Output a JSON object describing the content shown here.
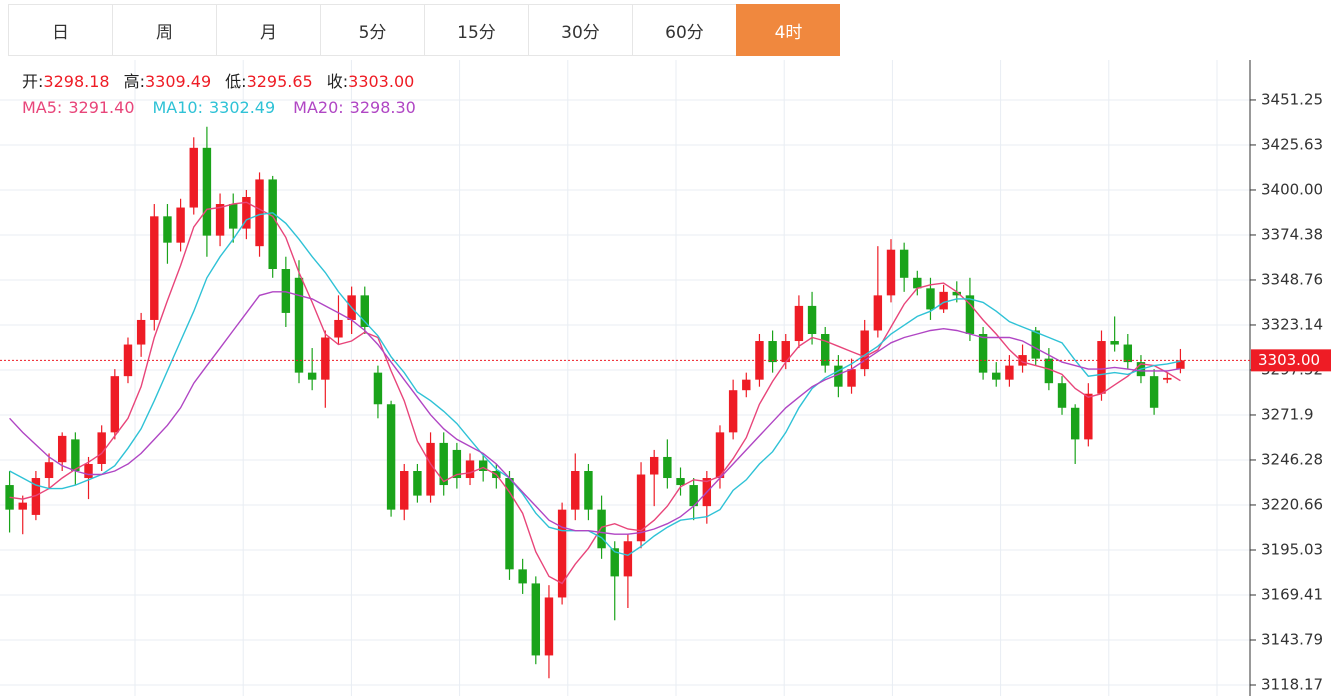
{
  "chart_data": {
    "type": "candlestick",
    "tabs": [
      "日",
      "周",
      "月",
      "5分",
      "15分",
      "30分",
      "60分",
      "4时"
    ],
    "active_tab": 7,
    "info": [
      {
        "label": "开:",
        "value": "3298.18"
      },
      {
        "label": "高:",
        "value": "3309.49"
      },
      {
        "label": "低:",
        "value": "3295.65"
      },
      {
        "label": "收:",
        "value": "3303.00"
      }
    ],
    "up_color": "#ee1c25",
    "down_color": "#1aa31a",
    "ohlc": [
      [
        3232,
        3240,
        3205,
        3218
      ],
      [
        3218,
        3226,
        3204,
        3222
      ],
      [
        3215,
        3240,
        3212,
        3236
      ],
      [
        3236,
        3250,
        3230,
        3245
      ],
      [
        3245,
        3262,
        3240,
        3260
      ],
      [
        3258,
        3262,
        3232,
        3240
      ],
      [
        3236,
        3248,
        3224,
        3244
      ],
      [
        3244,
        3266,
        3240,
        3262
      ],
      [
        3262,
        3298,
        3258,
        3294
      ],
      [
        3294,
        3316,
        3290,
        3312
      ],
      [
        3312,
        3330,
        3305,
        3326
      ],
      [
        3326,
        3392,
        3320,
        3385
      ],
      [
        3385,
        3392,
        3358,
        3370
      ],
      [
        3370,
        3395,
        3365,
        3390
      ],
      [
        3390,
        3430,
        3386,
        3424
      ],
      [
        3424,
        3436,
        3362,
        3374
      ],
      [
        3374,
        3398,
        3368,
        3392
      ],
      [
        3392,
        3398,
        3370,
        3378
      ],
      [
        3378,
        3400,
        3372,
        3396
      ],
      [
        3368,
        3410,
        3362,
        3406
      ],
      [
        3406,
        3408,
        3350,
        3355
      ],
      [
        3355,
        3362,
        3322,
        3330
      ],
      [
        3350,
        3360,
        3290,
        3296
      ],
      [
        3296,
        3310,
        3286,
        3292
      ],
      [
        3292,
        3320,
        3276,
        3316
      ],
      [
        3316,
        3340,
        3312,
        3326
      ],
      [
        3326,
        3345,
        3318,
        3340
      ],
      [
        3340,
        3345,
        3318,
        3322
      ],
      [
        3296,
        3300,
        3270,
        3278
      ],
      [
        3278,
        3280,
        3214,
        3218
      ],
      [
        3218,
        3244,
        3212,
        3240
      ],
      [
        3240,
        3244,
        3222,
        3226
      ],
      [
        3226,
        3262,
        3222,
        3256
      ],
      [
        3256,
        3262,
        3226,
        3232
      ],
      [
        3252,
        3256,
        3230,
        3236
      ],
      [
        3236,
        3250,
        3232,
        3246
      ],
      [
        3246,
        3250,
        3234,
        3240
      ],
      [
        3240,
        3244,
        3230,
        3236
      ],
      [
        3236,
        3240,
        3178,
        3184
      ],
      [
        3184,
        3190,
        3170,
        3176
      ],
      [
        3176,
        3180,
        3130,
        3135
      ],
      [
        3135,
        3175,
        3122,
        3168
      ],
      [
        3168,
        3222,
        3164,
        3218
      ],
      [
        3218,
        3250,
        3212,
        3240
      ],
      [
        3240,
        3244,
        3212,
        3218
      ],
      [
        3218,
        3226,
        3190,
        3196
      ],
      [
        3196,
        3200,
        3155,
        3180
      ],
      [
        3180,
        3204,
        3162,
        3200
      ],
      [
        3200,
        3245,
        3196,
        3238
      ],
      [
        3238,
        3252,
        3220,
        3248
      ],
      [
        3248,
        3258,
        3230,
        3236
      ],
      [
        3236,
        3242,
        3226,
        3232
      ],
      [
        3232,
        3236,
        3212,
        3220
      ],
      [
        3220,
        3240,
        3210,
        3236
      ],
      [
        3236,
        3266,
        3230,
        3262
      ],
      [
        3262,
        3292,
        3258,
        3286
      ],
      [
        3286,
        3296,
        3282,
        3292
      ],
      [
        3292,
        3318,
        3288,
        3314
      ],
      [
        3314,
        3320,
        3296,
        3302
      ],
      [
        3302,
        3318,
        3298,
        3314
      ],
      [
        3314,
        3340,
        3310,
        3334
      ],
      [
        3334,
        3342,
        3312,
        3318
      ],
      [
        3318,
        3322,
        3296,
        3300
      ],
      [
        3300,
        3306,
        3282,
        3288
      ],
      [
        3288,
        3304,
        3284,
        3298
      ],
      [
        3298,
        3326,
        3294,
        3320
      ],
      [
        3320,
        3368,
        3316,
        3340
      ],
      [
        3340,
        3372,
        3336,
        3366
      ],
      [
        3366,
        3370,
        3342,
        3350
      ],
      [
        3350,
        3354,
        3340,
        3344
      ],
      [
        3344,
        3350,
        3326,
        3332
      ],
      [
        3332,
        3346,
        3330,
        3342
      ],
      [
        3342,
        3348,
        3336,
        3340
      ],
      [
        3340,
        3350,
        3314,
        3318
      ],
      [
        3318,
        3322,
        3292,
        3296
      ],
      [
        3296,
        3302,
        3288,
        3292
      ],
      [
        3292,
        3306,
        3288,
        3300
      ],
      [
        3300,
        3312,
        3296,
        3306
      ],
      [
        3320,
        3322,
        3300,
        3304
      ],
      [
        3304,
        3310,
        3286,
        3290
      ],
      [
        3290,
        3294,
        3272,
        3276
      ],
      [
        3276,
        3278,
        3244,
        3258
      ],
      [
        3258,
        3290,
        3254,
        3284
      ],
      [
        3284,
        3320,
        3280,
        3314
      ],
      [
        3314,
        3328,
        3308,
        3312
      ],
      [
        3312,
        3318,
        3298,
        3302
      ],
      [
        3302,
        3306,
        3290,
        3294
      ],
      [
        3294,
        3298,
        3272,
        3276
      ],
      [
        3292,
        3296,
        3290,
        3293
      ],
      [
        3298.18,
        3309.49,
        3295.65,
        3303.0
      ]
    ],
    "series": [
      {
        "name": "MA5:",
        "color": "#e8457a",
        "last_label": "3291.40",
        "values": [
          3225,
          3224,
          3226,
          3230,
          3236,
          3241,
          3245,
          3250,
          3260,
          3270,
          3288,
          3316,
          3337,
          3357,
          3379,
          3389,
          3390,
          3392,
          3393,
          3389,
          3385,
          3373,
          3353,
          3336,
          3318,
          3312,
          3314,
          3319,
          3316,
          3297,
          3280,
          3257,
          3244,
          3234,
          3238,
          3239,
          3242,
          3238,
          3228,
          3216,
          3194,
          3180,
          3176,
          3187,
          3196,
          3208,
          3210,
          3207,
          3206,
          3212,
          3220,
          3231,
          3235,
          3234,
          3237,
          3247,
          3259,
          3278,
          3291,
          3302,
          3311,
          3316,
          3314,
          3311,
          3308,
          3305,
          3309,
          3322,
          3335,
          3344,
          3346,
          3347,
          3342,
          3335,
          3326,
          3318,
          3309,
          3302,
          3300,
          3298,
          3295,
          3287,
          3282,
          3284,
          3289,
          3294,
          3301,
          3300,
          3296,
          3291.4
        ]
      },
      {
        "name": "MA10:",
        "color": "#2fc2d6",
        "last_label": "3302.49",
        "values": [
          3240,
          3236,
          3232,
          3230,
          3230,
          3232,
          3235,
          3238,
          3243,
          3253,
          3264,
          3280,
          3297,
          3314,
          3331,
          3350,
          3362,
          3372,
          3383,
          3386,
          3387,
          3381,
          3372,
          3362,
          3353,
          3342,
          3333,
          3325,
          3317,
          3305,
          3296,
          3285,
          3280,
          3274,
          3267,
          3258,
          3249,
          3241,
          3236,
          3227,
          3216,
          3208,
          3206,
          3206,
          3206,
          3202,
          3194,
          3192,
          3197,
          3203,
          3208,
          3212,
          3213,
          3214,
          3218,
          3229,
          3235,
          3244,
          3251,
          3262,
          3276,
          3287,
          3293,
          3297,
          3301,
          3306,
          3311,
          3318,
          3323,
          3328,
          3331,
          3336,
          3338,
          3338,
          3336,
          3331,
          3325,
          3322,
          3319,
          3316,
          3313,
          3303,
          3294,
          3295,
          3296,
          3295,
          3298,
          3300,
          3301,
          3302.49
        ]
      },
      {
        "name": "MA20:",
        "color": "#b046c4",
        "last_label": "3298.30",
        "values": [
          3270,
          3262,
          3255,
          3248,
          3243,
          3240,
          3238,
          3238,
          3240,
          3244,
          3250,
          3258,
          3266,
          3276,
          3290,
          3300,
          3310,
          3320,
          3330,
          3340,
          3342,
          3342,
          3340,
          3338,
          3334,
          3330,
          3326,
          3320,
          3312,
          3302,
          3292,
          3282,
          3272,
          3264,
          3258,
          3254,
          3250,
          3244,
          3236,
          3228,
          3220,
          3212,
          3208,
          3206,
          3206,
          3205,
          3204,
          3204,
          3205,
          3207,
          3210,
          3214,
          3220,
          3228,
          3236,
          3244,
          3252,
          3260,
          3268,
          3276,
          3282,
          3288,
          3292,
          3295,
          3298,
          3303,
          3308,
          3313,
          3316,
          3318,
          3320,
          3321,
          3320,
          3318,
          3316,
          3316,
          3316,
          3314,
          3310,
          3306,
          3302,
          3300,
          3298,
          3298,
          3299,
          3298,
          3297,
          3297,
          3297,
          3298.3
        ]
      }
    ],
    "current_price": {
      "value": 3303.0,
      "label": "3303.00"
    },
    "ylim": [
      3111.9,
      3474.0
    ],
    "yticks": [
      3451.25,
      3425.63,
      {
        "value": 3400.0,
        "label": "3400.00"
      },
      3374.38,
      3348.76,
      3323.14,
      3297.52,
      3271.9,
      3246.28,
      3220.66,
      3195.03,
      3169.41,
      3143.79,
      3118.17
    ],
    "grid": true
  }
}
